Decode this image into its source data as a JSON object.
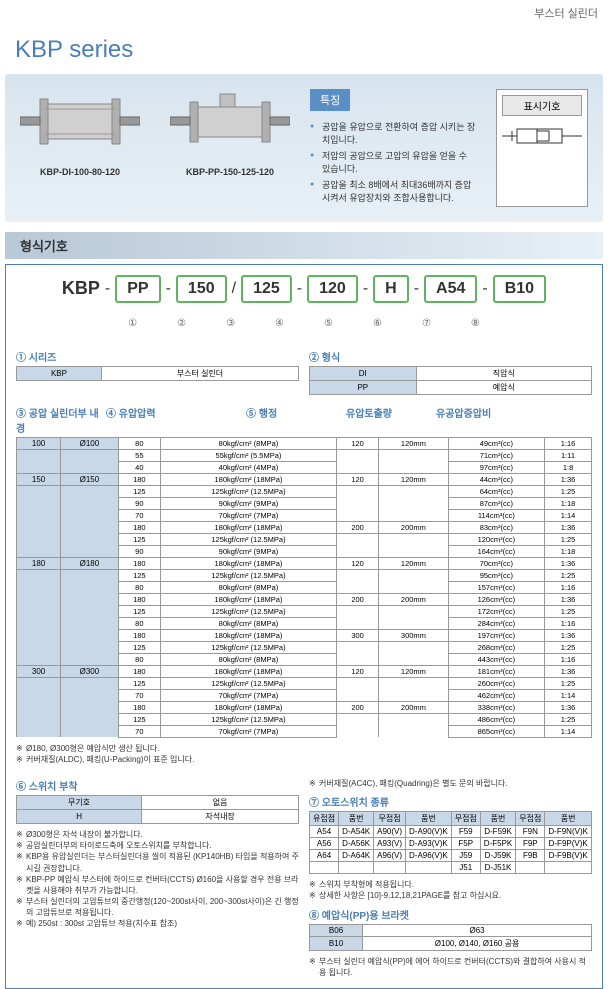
{
  "header": {
    "product_type": "부스터 실린더"
  },
  "series": {
    "title": "KBP series"
  },
  "hero": {
    "img1_label": "KBP-DI-100-80-120",
    "img2_label": "KBP-PP-150-125-120",
    "features_title": "특징",
    "features": [
      "공압을 유압으로 전환하여 증압 시키는 장치입니다.",
      "저압의 공압으로 고압의 유압을 얻을 수 있습니다.",
      "공압을 최소 8배에서 최대36배까지 증압 시켜서 유압장치와 조합사용합니다."
    ],
    "symbol_title": "표시기호"
  },
  "format_section": {
    "title": "형식기호",
    "prefix": "KBP",
    "segments": [
      "PP",
      "150",
      "125",
      "120",
      "H",
      "A54",
      "B10"
    ],
    "separators": [
      "-",
      "",
      "/",
      "-",
      "",
      "-",
      "-"
    ],
    "numbers": [
      "①",
      "②",
      "③",
      "④",
      "⑤",
      "⑥",
      "⑦",
      "⑧"
    ]
  },
  "tables": {
    "t1_title": "① 시리즈",
    "t1": {
      "h": [
        "KBP"
      ],
      "r": [
        [
          "부스터 실린더"
        ]
      ]
    },
    "t2_title": "② 형식",
    "t2": {
      "h": [
        "DI",
        "직압식"
      ],
      "r": [
        [
          "PP",
          "예압식"
        ]
      ]
    },
    "t3_title": "③ 공압 실린더부 내경",
    "t4_title": "④ 유압압력",
    "t5_title": "⑤ 행정",
    "t5_h2": "유압토출량",
    "t5_h3": "유공압증압비",
    "main_rows": [
      [
        "100",
        "Ø100",
        "80",
        "80kgf/cm² (8MPa)",
        "120",
        "120mm",
        "49cm³(cc)",
        "1:16"
      ],
      [
        "",
        "",
        "55",
        "55kgf/cm² (5.5MPa)",
        "",
        "",
        "71cm³(cc)",
        "1:11"
      ],
      [
        "",
        "",
        "40",
        "40kgf/cm² (4MPa)",
        "",
        "",
        "97cm³(cc)",
        "1:8"
      ],
      [
        "150",
        "Ø150",
        "180",
        "180kgf/cm² (18MPa)",
        "120",
        "120mm",
        "44cm³(cc)",
        "1:36"
      ],
      [
        "",
        "",
        "125",
        "125kgf/cm² (12.5MPa)",
        "",
        "",
        "64cm³(cc)",
        "1:25"
      ],
      [
        "",
        "",
        "90",
        "90kgf/cm² (9MPa)",
        "",
        "",
        "87cm³(cc)",
        "1:18"
      ],
      [
        "",
        "",
        "70",
        "70kgf/cm² (7MPa)",
        "",
        "",
        "114cm³(cc)",
        "1:14"
      ],
      [
        "",
        "",
        "180",
        "180kgf/cm² (18MPa)",
        "200",
        "200mm",
        "83cm³(cc)",
        "1:36"
      ],
      [
        "",
        "",
        "125",
        "125kgf/cm² (12.5MPa)",
        "",
        "",
        "120cm³(cc)",
        "1:25"
      ],
      [
        "",
        "",
        "90",
        "90kgf/cm² (9MPa)",
        "",
        "",
        "164cm³(cc)",
        "1:18"
      ],
      [
        "180",
        "Ø180",
        "180",
        "180kgf/cm² (18MPa)",
        "120",
        "120mm",
        "70cm³(cc)",
        "1:36"
      ],
      [
        "",
        "",
        "125",
        "125kgf/cm² (12.5MPa)",
        "",
        "",
        "95cm³(cc)",
        "1:25"
      ],
      [
        "",
        "",
        "80",
        "80kgf/cm² (8MPa)",
        "",
        "",
        "157cm³(cc)",
        "1:16"
      ],
      [
        "",
        "",
        "180",
        "180kgf/cm² (18MPa)",
        "200",
        "200mm",
        "126cm³(cc)",
        "1:36"
      ],
      [
        "",
        "",
        "125",
        "125kgf/cm² (12.5MPa)",
        "",
        "",
        "172cm³(cc)",
        "1:25"
      ],
      [
        "",
        "",
        "80",
        "80kgf/cm² (8MPa)",
        "",
        "",
        "284cm³(cc)",
        "1:16"
      ],
      [
        "",
        "",
        "180",
        "180kgf/cm² (18MPa)",
        "300",
        "300mm",
        "197cm³(cc)",
        "1:36"
      ],
      [
        "",
        "",
        "125",
        "125kgf/cm² (12.5MPa)",
        "",
        "",
        "268cm³(cc)",
        "1:25"
      ],
      [
        "",
        "",
        "80",
        "80kgf/cm² (8MPa)",
        "",
        "",
        "443cm³(cc)",
        "1:16"
      ],
      [
        "300",
        "Ø300",
        "180",
        "180kgf/cm² (18MPa)",
        "120",
        "120mm",
        "181cm³(cc)",
        "1:36"
      ],
      [
        "",
        "",
        "125",
        "125kgf/cm² (12.5MPa)",
        "",
        "",
        "260cm³(cc)",
        "1:25"
      ],
      [
        "",
        "",
        "70",
        "70kgf/cm² (7MPa)",
        "",
        "",
        "462cm³(cc)",
        "1:14"
      ],
      [
        "",
        "",
        "180",
        "180kgf/cm² (18MPa)",
        "200",
        "200mm",
        "338cm³(cc)",
        "1:36"
      ],
      [
        "",
        "",
        "125",
        "125kgf/cm² (12.5MPa)",
        "",
        "",
        "486cm³(cc)",
        "1:25"
      ],
      [
        "",
        "",
        "70",
        "70kgf/cm² (7MPa)",
        "",
        "",
        "865cm³(cc)",
        "1:14"
      ]
    ],
    "main_notes": [
      "Ø180, Ø300형은 예압식만 생산 됩니다.",
      "커버재질(ALDC), 패킹(U-Packing)이 표준 입니다."
    ],
    "t6_title": "⑥ 스위치 부착",
    "t6": {
      "h": [
        "무기호",
        "없음"
      ],
      "r": [
        [
          "H",
          "자석내장"
        ]
      ]
    },
    "t6_notes": [
      "Ø300형은 자석 내장이 불가합니다.",
      "공압실린더부의 타이로드축에 오토스위치를 부착합니다.",
      "KBP용 유압실린더는 부스터실린더용 씰이 적용된 (KP140HB) 타입을 적용하여 주시길 권장합니다.",
      "KBP-PP 예압식 부스터에 하이드로 컨버터(CCTS) Ø160을 사용할 경우 전용 브라켓을 사용해야 취부가 가능합니다.",
      "부스터 실린더의 고압튜브의 중간행정(120~200st사이, 200~300st사이)은 긴 행정의 고압튜브로 적용됩니다.",
      "예) 250st : 300st 고압튜브 적용(치수표 참조)"
    ],
    "t6b_note": "커버재질(AC4C), 패킹(Quadring)은 별도 문의 바랍니다.",
    "t7_title": "⑦ 오토스위치 종류",
    "t7_headers": [
      "유접점",
      "품번",
      "무접점",
      "품번",
      "무접점",
      "품번",
      "무접점",
      "품번"
    ],
    "t7_rows": [
      [
        "A54",
        "D-A54K",
        "A90(V)",
        "D-A90(V)K",
        "F59",
        "D-F59K",
        "F9N",
        "D-F9N(V)K"
      ],
      [
        "A56",
        "D-A56K",
        "A93(V)",
        "D-A93(V)K",
        "F5P",
        "D-F5PK",
        "F9P",
        "D-F9P(V)K"
      ],
      [
        "A64",
        "D-A64K",
        "A96(V)",
        "D-A96(V)K",
        "J59",
        "D-J59K",
        "F9B",
        "D-F9B(V)K"
      ],
      [
        "",
        "",
        "",
        "",
        "J51",
        "D-J51K",
        "",
        ""
      ]
    ],
    "t7_notes": [
      "스위치 부착형에 적용됩니다.",
      "상세한 사항은 [10]-9,12,18,21PAGE를 참고 하십시요."
    ],
    "t8_title": "⑧ 예압식(PP)용 브라켓",
    "t8": {
      "r": [
        [
          "B06",
          "Ø63"
        ],
        [
          "B10",
          "Ø100, Ø140, Ø160 공용"
        ]
      ]
    },
    "t8_notes": [
      "부스터 실린더 예압식(PP)에 에어 하이드로 컨버터(CCTS)와 결합하여 사용시 적용 됩니다."
    ]
  }
}
